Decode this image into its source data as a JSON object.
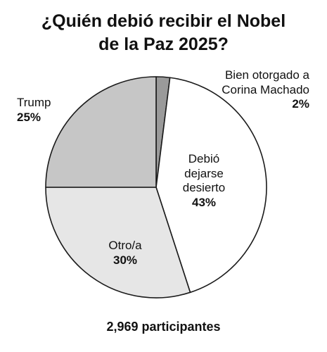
{
  "chart_data": {
    "type": "pie",
    "title_lines": [
      "¿Quién debió recibir el Nobel",
      "de la Paz 2025?"
    ],
    "slices": [
      {
        "label_lines": [
          "Bien otorgado a",
          "Corina Machado"
        ],
        "value": 2,
        "value_label": "2%",
        "color": "#9a9a9a"
      },
      {
        "label_lines": [
          "Debió",
          "dejarse",
          "desierto"
        ],
        "value": 43,
        "value_label": "43%",
        "color": "#ffffff"
      },
      {
        "label_lines": [
          "Otro/a"
        ],
        "value": 30,
        "value_label": "30%",
        "color": "#e6e6e6"
      },
      {
        "label_lines": [
          "Trump"
        ],
        "value": 25,
        "value_label": "25%",
        "color": "#c6c6c6"
      }
    ],
    "start_angle_deg": 0,
    "direction": "clockwise",
    "note": "2,969 participantes"
  }
}
